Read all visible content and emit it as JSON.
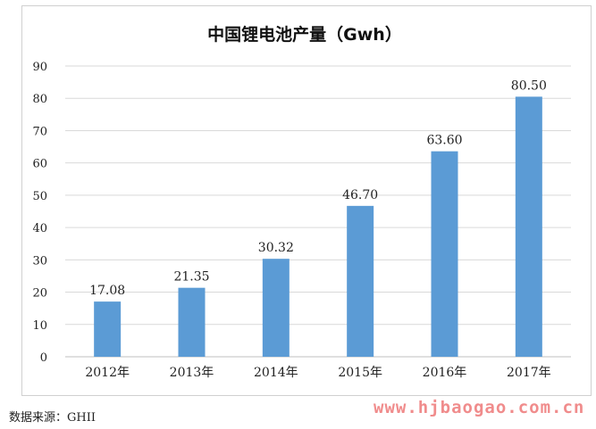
{
  "chart_data": {
    "type": "bar",
    "title": "中国锂电池产量（Gwh）",
    "categories": [
      "2012年",
      "2013年",
      "2014年",
      "2015年",
      "2016年",
      "2017年"
    ],
    "values": [
      17.08,
      21.35,
      30.32,
      46.7,
      63.6,
      80.5
    ],
    "data_labels": [
      "17.08",
      "21.35",
      "30.32",
      "46.70",
      "63.60",
      "80.50"
    ],
    "ylim": [
      0,
      90
    ],
    "yticks": [
      "0",
      "10",
      "20",
      "30",
      "40",
      "50",
      "60",
      "70",
      "80",
      "90"
    ],
    "xlabel": "",
    "ylabel": "",
    "grid": true,
    "legend": "none",
    "bar_color": "#5b9bd5",
    "grid_color": "#d9d9d9"
  },
  "source_note": "数据来源：GHII",
  "watermark": {
    "text": "www.hjbaogao.com.cn",
    "color": "#f08c8c"
  }
}
